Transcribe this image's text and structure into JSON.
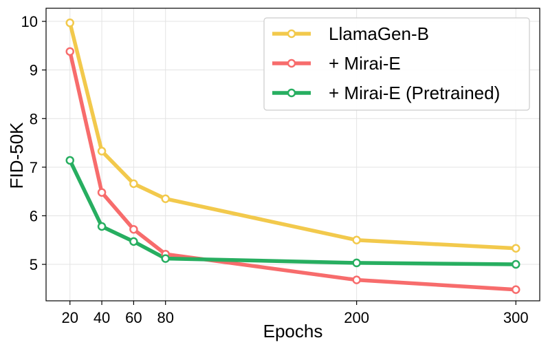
{
  "chart_data": {
    "type": "line",
    "title": "",
    "xlabel": "Epochs",
    "ylabel": "FID-50K",
    "x": [
      20,
      40,
      60,
      80,
      200,
      300
    ],
    "xticks": [
      "20",
      "40",
      "60",
      "80",
      "200",
      "300"
    ],
    "yticks": [
      "5",
      "6",
      "7",
      "8",
      "9",
      "10"
    ],
    "xlim": [
      5,
      315
    ],
    "ylim": [
      4.25,
      10.27
    ],
    "grid": true,
    "legend_position": "top-right",
    "series": [
      {
        "name": "LlamaGen-B",
        "color": "#F2C94C",
        "values": [
          9.97,
          7.33,
          6.66,
          6.35,
          5.5,
          5.33
        ]
      },
      {
        "name": "+ Mirai-E",
        "color": "#F76C6C",
        "values": [
          9.38,
          6.48,
          5.72,
          5.21,
          4.68,
          4.48
        ]
      },
      {
        "name": "+ Mirai-E (Pretrained)",
        "color": "#27AE60",
        "values": [
          7.14,
          5.78,
          5.47,
          5.12,
          5.03,
          5.0
        ]
      }
    ]
  }
}
